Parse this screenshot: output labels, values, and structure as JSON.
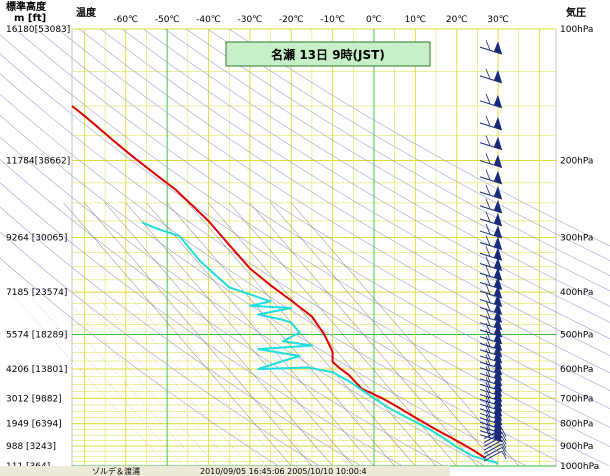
{
  "chart_data": {
    "type": "line",
    "title": "名瀬  13日  9時(JST)",
    "left_axis_title_line1": "標準高度",
    "left_axis_title_line2": "m  [ft]",
    "temp_axis_title": "温度",
    "right_axis_title": "気圧",
    "temp_ticks": [
      "-60℃",
      "-50℃",
      "-40℃",
      "-30℃",
      "-20℃",
      "-10℃",
      "0℃",
      "10℃",
      "20℃",
      "30℃"
    ],
    "temp_tick_values": [
      -60,
      -50,
      -40,
      -30,
      -20,
      -10,
      0,
      10,
      20,
      30
    ],
    "pressure_ticks": [
      "100hPa",
      "200hPa",
      "300hPa",
      "400hPa",
      "500hPa",
      "600hPa",
      "700hPa",
      "800hPa",
      "900hPa",
      "1000hPa"
    ],
    "pressure_tick_values": [
      100,
      200,
      300,
      400,
      500,
      600,
      700,
      800,
      900,
      1000
    ],
    "height_ticks": [
      "16180[53083]",
      "11784[38662]",
      "9264 [30065]",
      "7185 [23574]",
      "5574 [18289]",
      "4206 [13801]",
      "3012 [9882]",
      "1949 [6394]",
      "988  [3243]",
      "111  [364]"
    ],
    "height_tick_pressures": [
      100,
      200,
      300,
      400,
      500,
      600,
      700,
      800,
      900,
      1000
    ],
    "ylim_hpa": [
      100,
      1000
    ],
    "xlim_c": [
      -73,
      44
    ],
    "grid": true,
    "series": [
      {
        "color": "#e00000",
        "points": [
          [
            -73,
            150
          ],
          [
            -70,
            158
          ],
          [
            -67,
            167
          ],
          [
            -63,
            180
          ],
          [
            -58,
            197
          ],
          [
            -52,
            218
          ],
          [
            -48,
            233
          ],
          [
            -44,
            253
          ],
          [
            -40,
            275
          ],
          [
            -35,
            312
          ],
          [
            -30,
            353
          ],
          [
            -25,
            386
          ],
          [
            -20,
            418
          ],
          [
            -15,
            455
          ],
          [
            -12,
            500
          ],
          [
            -10,
            548
          ],
          [
            -10,
            578
          ],
          [
            -8,
            600
          ],
          [
            -6,
            620
          ],
          [
            -3,
            665
          ],
          [
            2,
            700
          ],
          [
            6,
            735
          ],
          [
            10,
            775
          ],
          [
            15,
            825
          ],
          [
            20,
            875
          ],
          [
            24,
            920
          ],
          [
            27,
            960
          ]
        ]
      },
      {
        "color": "#22dddd",
        "points": [
          [
            -56,
            277
          ],
          [
            -53,
            285
          ],
          [
            -47,
            298
          ],
          [
            -42,
            340
          ],
          [
            -35,
            390
          ],
          [
            -25,
            420
          ],
          [
            -30,
            430
          ],
          [
            -20,
            435
          ],
          [
            -28,
            450
          ],
          [
            -22,
            463
          ],
          [
            -20,
            470
          ],
          [
            -18,
            495
          ],
          [
            -22,
            518
          ],
          [
            -15,
            530
          ],
          [
            -28,
            540
          ],
          [
            -18,
            560
          ],
          [
            -22,
            575
          ],
          [
            -28,
            600
          ],
          [
            -16,
            595
          ],
          [
            -10,
            610
          ],
          [
            -6,
            640
          ],
          [
            0,
            700
          ],
          [
            4,
            740
          ],
          [
            8,
            775
          ],
          [
            13,
            820
          ],
          [
            17,
            865
          ],
          [
            20,
            905
          ],
          [
            24,
            950
          ],
          [
            30,
            985
          ]
        ]
      }
    ]
  },
  "status_bar": {
    "left": "ゾルデ＆渡浦",
    "right": "2010/09/05 16:45:06   2005/10/10 10:00:4"
  },
  "colors": {
    "grid_yellow": "#dddd33",
    "grid_green": "#33bb33",
    "title_box": "#c8f0c8",
    "barb": "#1a2a7a"
  }
}
